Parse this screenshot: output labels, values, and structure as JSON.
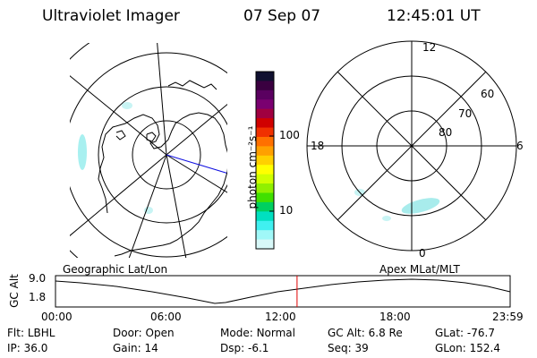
{
  "header": {
    "instrument": "Ultraviolet Imager",
    "date": "07 Sep 07",
    "time": "12:45:01 UT"
  },
  "colorbar": {
    "unit_label": "photon cm⁻²s⁻¹",
    "ticks": [
      "100",
      "10"
    ],
    "colors": [
      "#101030",
      "#3a0040",
      "#5a0060",
      "#7a0070",
      "#a00040",
      "#d00000",
      "#f03000",
      "#ff7000",
      "#ffa000",
      "#ffd000",
      "#ffff00",
      "#d0ff00",
      "#90f000",
      "#40e000",
      "#00d060",
      "#00e0c0",
      "#40f0f0",
      "#a0f8f8",
      "#d8f8f8"
    ]
  },
  "panels": {
    "left_label": "Geographic Lat/Lon",
    "right_label": "Apex MLat/MLT"
  },
  "polar": {
    "mlt_labels": [
      "12",
      "18",
      "6",
      "0"
    ],
    "mlat_labels": [
      "60",
      "70",
      "80"
    ]
  },
  "altplot": {
    "ylabel": "GC Alt",
    "yticks": [
      "9.0",
      "1.8"
    ],
    "xticks": [
      "00:00",
      "06:00",
      "12:00",
      "18:00",
      "23:59"
    ],
    "marker_hour": 12.75
  },
  "info": {
    "row1": [
      {
        "label": "Flt:",
        "value": "LBHL"
      },
      {
        "label": "Door:",
        "value": "Open"
      },
      {
        "label": "Mode:",
        "value": "Normal"
      },
      {
        "label": "GC Alt:",
        "value": "6.8 Re"
      },
      {
        "label": "GLat:",
        "value": "-76.7"
      }
    ],
    "row2": [
      {
        "label": "IP:",
        "value": "36.0"
      },
      {
        "label": "Gain:",
        "value": "14"
      },
      {
        "label": "Dsp:",
        "value": "-6.1"
      },
      {
        "label": "Seq:",
        "value": "39"
      },
      {
        "label": "GLon:",
        "value": "152.4"
      }
    ]
  }
}
